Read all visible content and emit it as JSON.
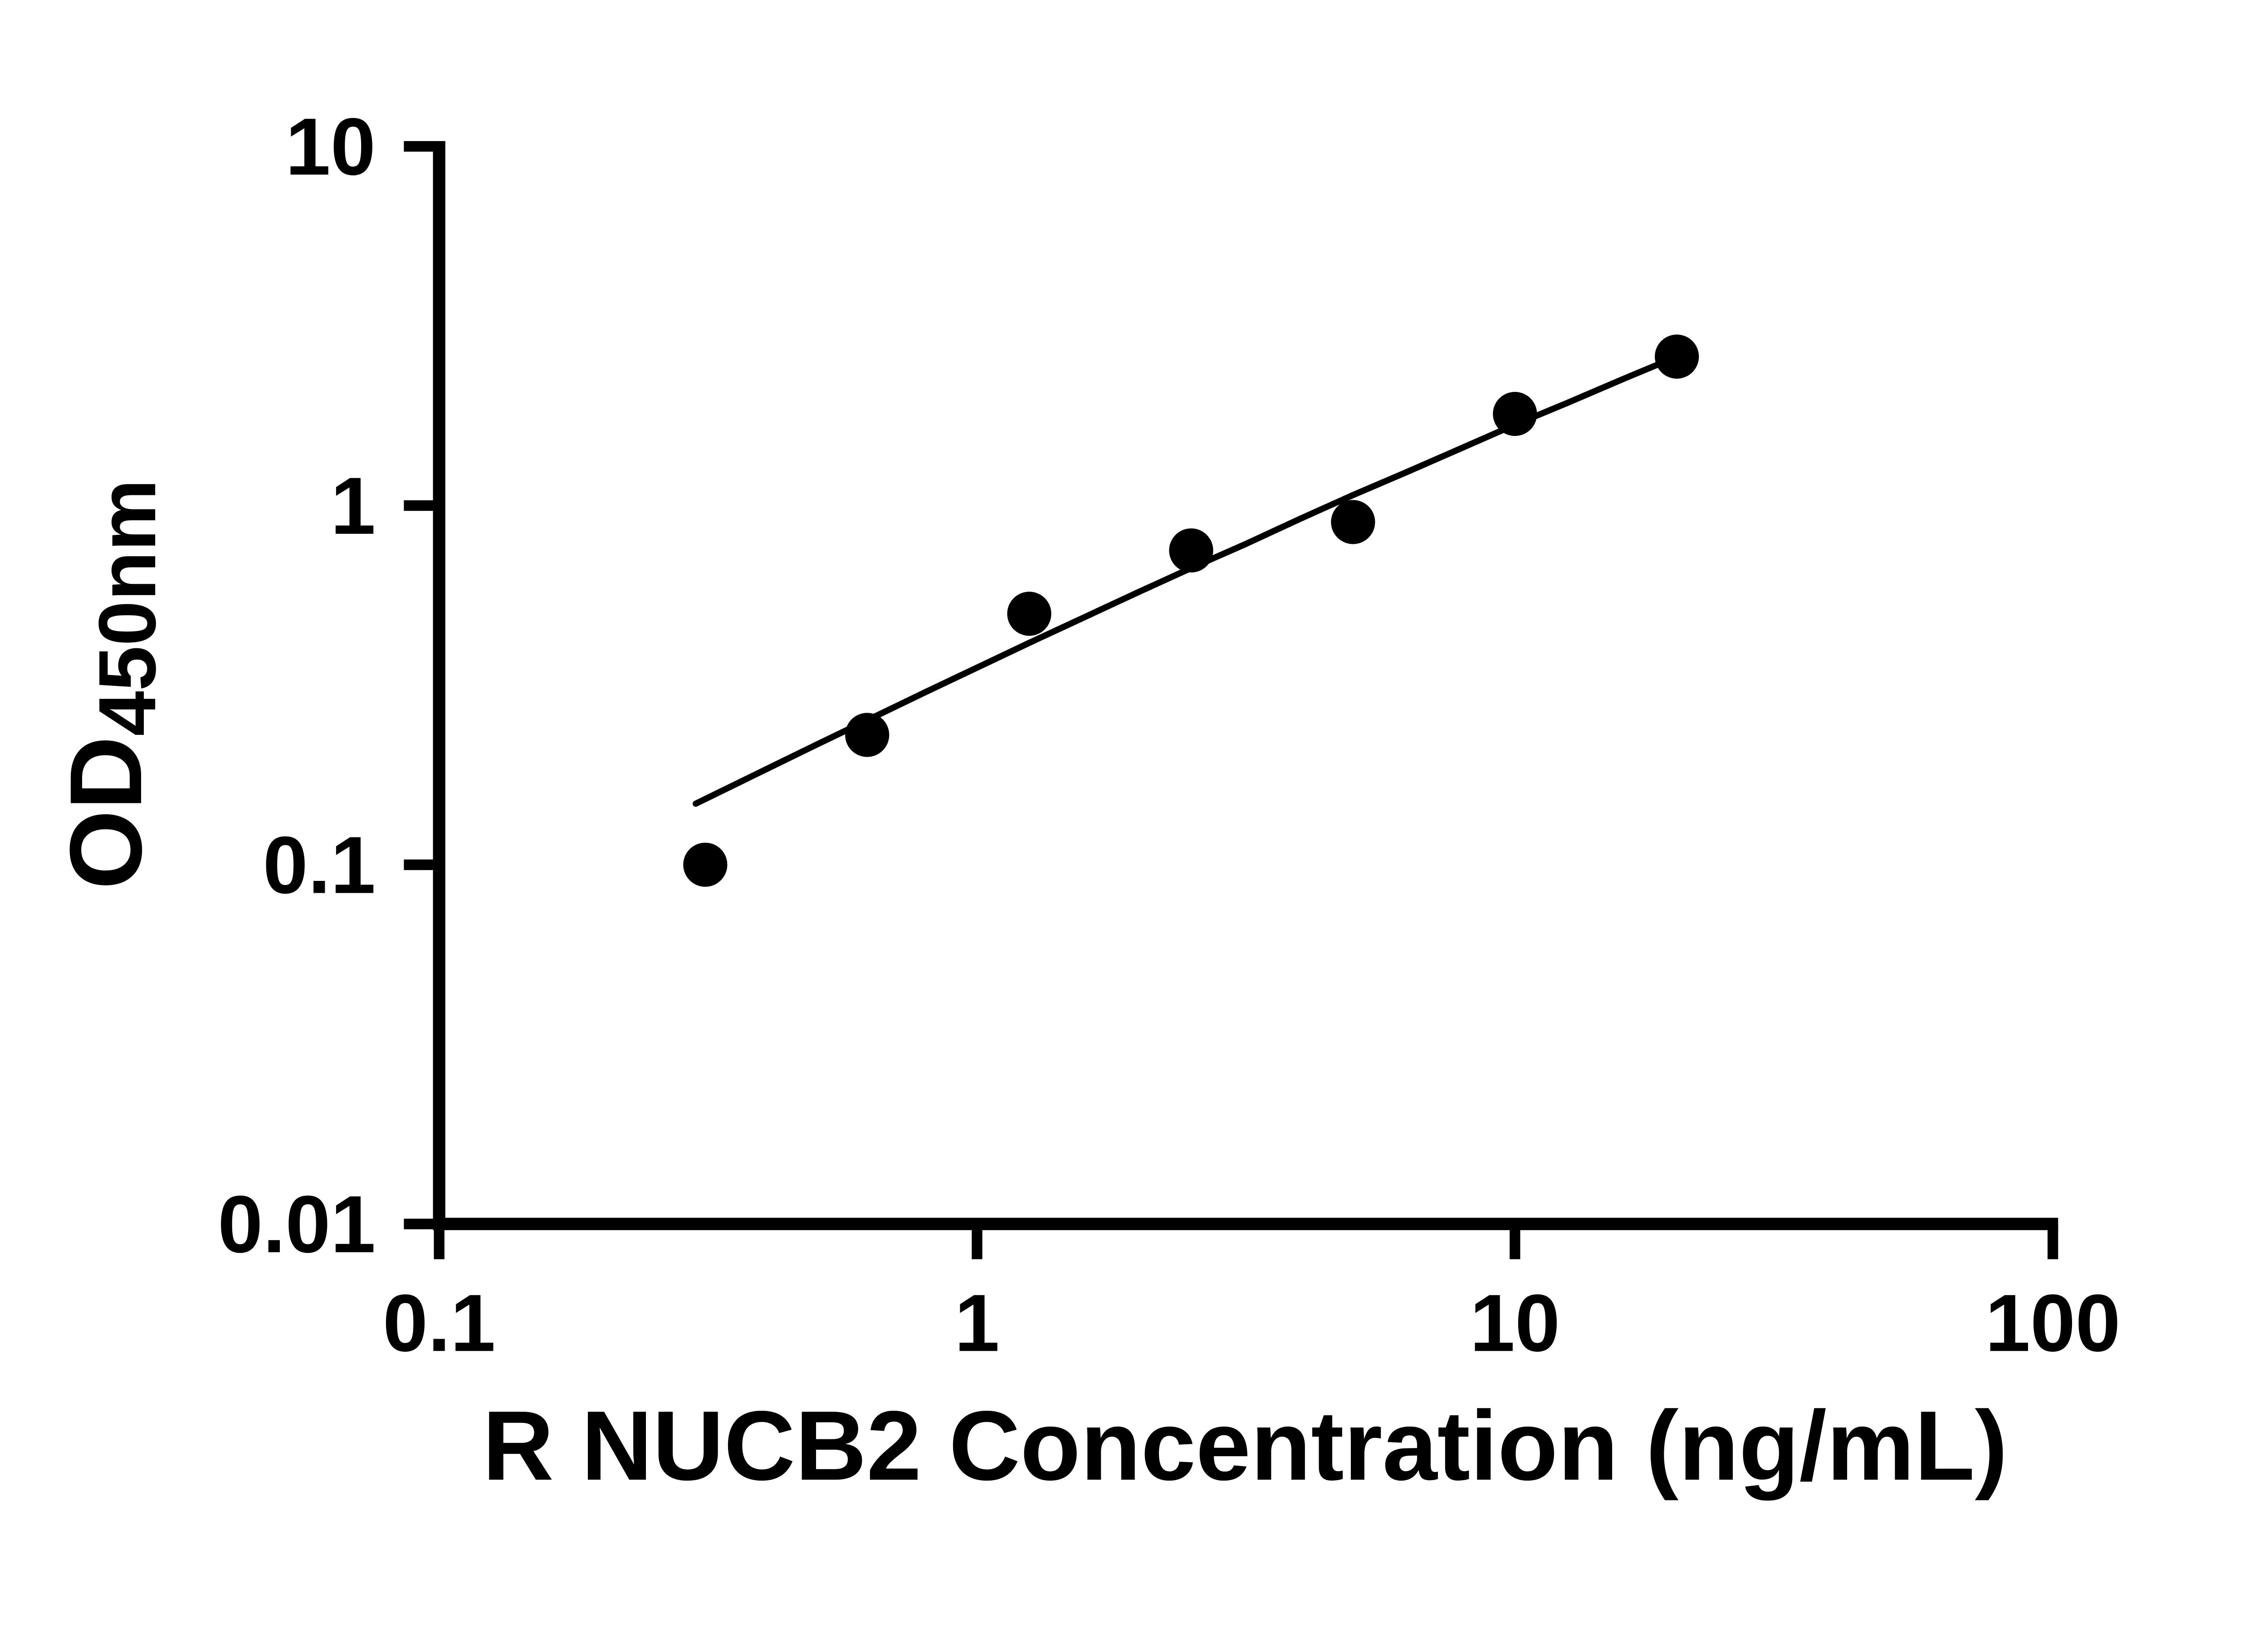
{
  "figure": {
    "background": "#ffffff",
    "foreground": "#000000"
  },
  "chart_data": {
    "type": "scatter",
    "title": "",
    "xlabel": "R NUCB2 Concentration (ng/mL)",
    "ylabel": {
      "main": "OD",
      "subscript": "450nm"
    },
    "x_scale": "log10",
    "y_scale": "log10",
    "xlim": [
      0.1,
      100
    ],
    "ylim": [
      0.01,
      10
    ],
    "grid": false,
    "legend": false,
    "x_ticks": {
      "values": [
        0.1,
        1,
        10,
        100
      ],
      "labels": [
        "0.1",
        "1",
        "10",
        "100"
      ]
    },
    "y_ticks": {
      "values": [
        0.01,
        0.1,
        1,
        10
      ],
      "labels": [
        "0.01",
        "0.1",
        "1",
        "10"
      ]
    },
    "series": [
      {
        "marker": "filled-circle",
        "color": "#000000",
        "points": [
          {
            "x": 0.3125,
            "y": 0.1
          },
          {
            "x": 0.625,
            "y": 0.23
          },
          {
            "x": 1.25,
            "y": 0.5
          },
          {
            "x": 2.5,
            "y": 0.75
          },
          {
            "x": 5,
            "y": 0.9
          },
          {
            "x": 10,
            "y": 1.8
          },
          {
            "x": 20,
            "y": 2.6
          }
        ]
      }
    ],
    "fit_line": {
      "color": "#000000",
      "points": [
        {
          "x": 0.3,
          "y": 0.148
        },
        {
          "x": 0.5,
          "y": 0.215
        },
        {
          "x": 0.8,
          "y": 0.302
        },
        {
          "x": 1.25,
          "y": 0.415
        },
        {
          "x": 2.0,
          "y": 0.575
        },
        {
          "x": 2.5,
          "y": 0.67
        },
        {
          "x": 3.15,
          "y": 0.78
        },
        {
          "x": 4.0,
          "y": 0.92
        },
        {
          "x": 5.0,
          "y": 1.07
        },
        {
          "x": 6.3,
          "y": 1.24
        },
        {
          "x": 8.0,
          "y": 1.45
        },
        {
          "x": 10.0,
          "y": 1.68
        },
        {
          "x": 12.5,
          "y": 1.93
        },
        {
          "x": 16.0,
          "y": 2.26
        },
        {
          "x": 20.0,
          "y": 2.6
        }
      ]
    }
  }
}
